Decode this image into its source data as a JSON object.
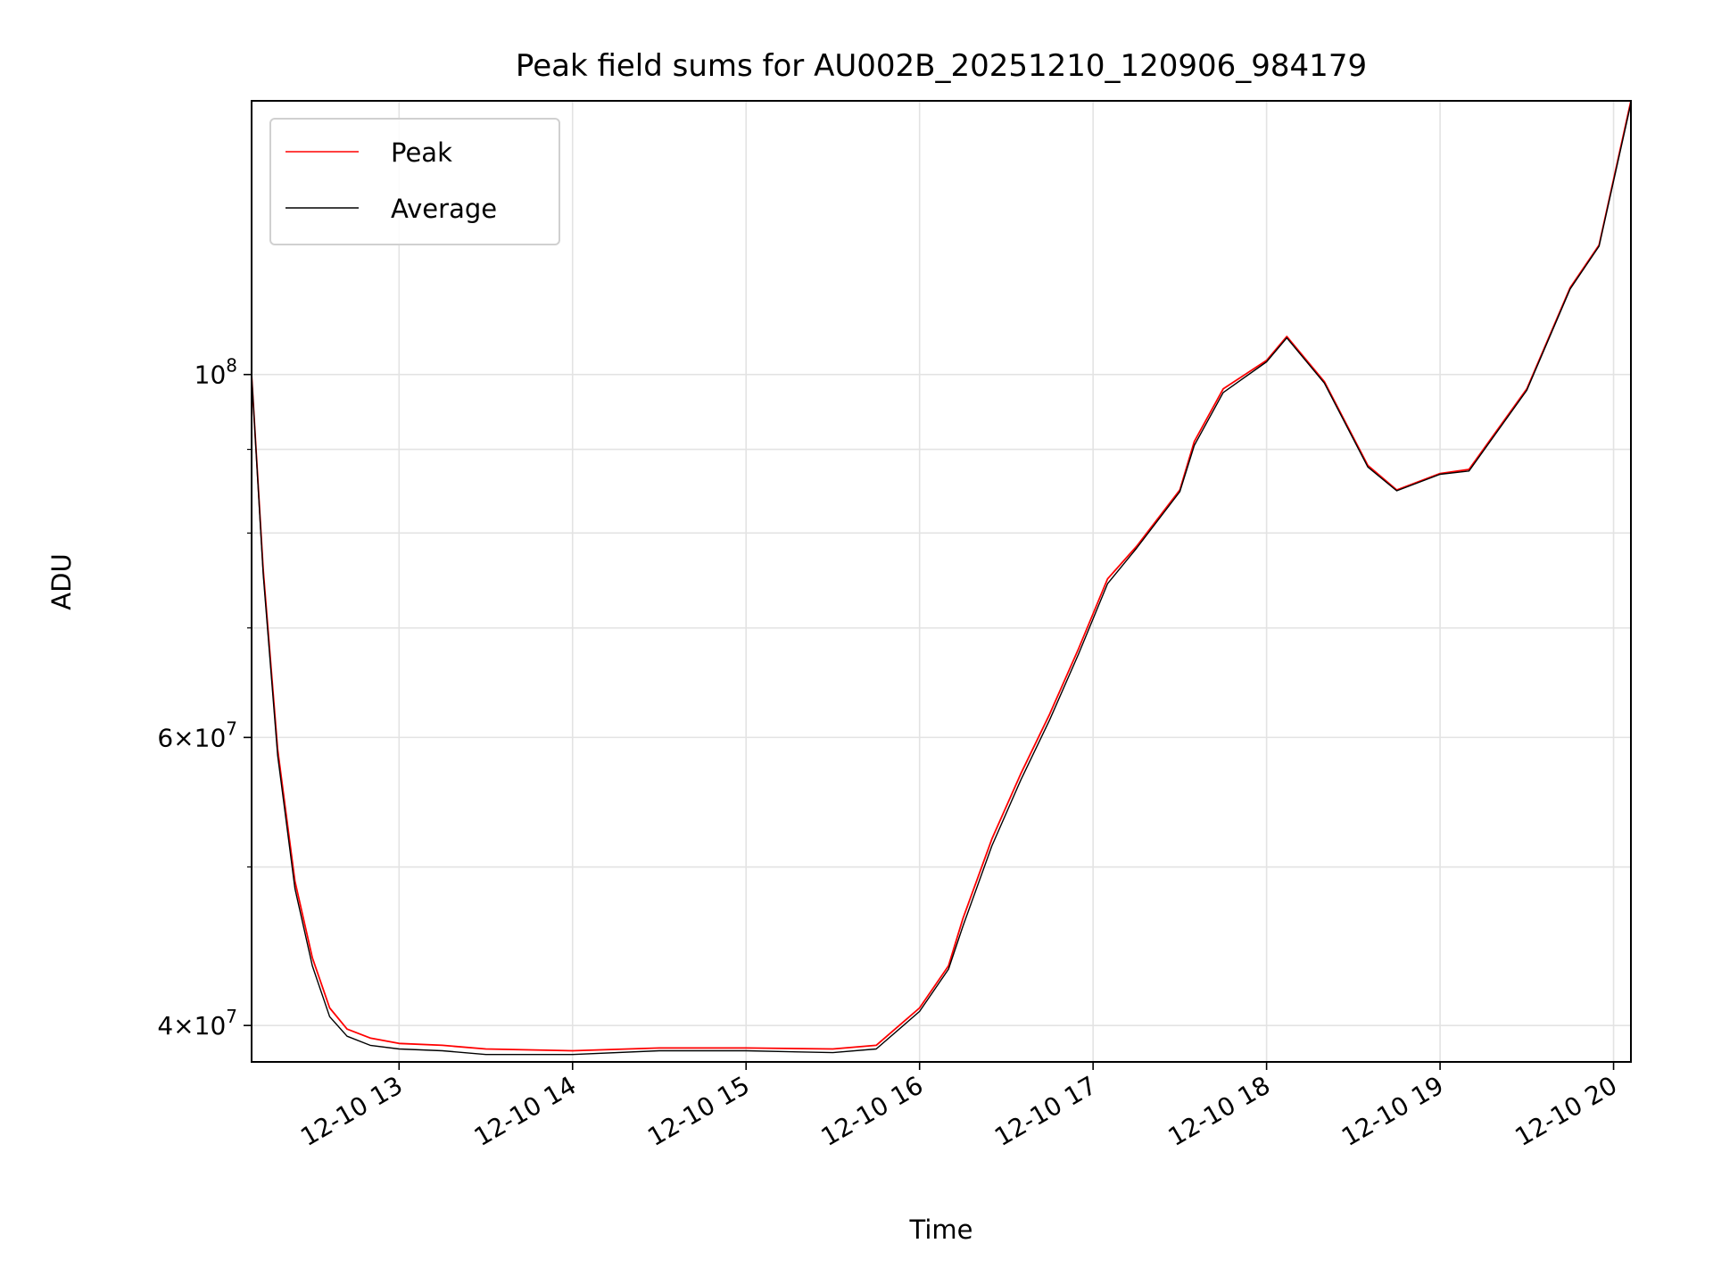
{
  "chart_data": {
    "type": "line",
    "title": "Peak field sums for AU002B_20251210_120906_984179",
    "xlabel": "Time",
    "ylabel": "ADU",
    "yscale": "log",
    "xlim": [
      "2025-12-10 12:09",
      "2025-12-10 20:06"
    ],
    "ylim": [
      38000000,
      147000000
    ],
    "grid": true,
    "legend_position": "upper-left",
    "x_ticks": [
      {
        "value": "2025-12-10 13:00",
        "label": "12-10 13"
      },
      {
        "value": "2025-12-10 14:00",
        "label": "12-10 14"
      },
      {
        "value": "2025-12-10 15:00",
        "label": "12-10 15"
      },
      {
        "value": "2025-12-10 16:00",
        "label": "12-10 16"
      },
      {
        "value": "2025-12-10 17:00",
        "label": "12-10 17"
      },
      {
        "value": "2025-12-10 18:00",
        "label": "12-10 18"
      },
      {
        "value": "2025-12-10 19:00",
        "label": "12-10 19"
      },
      {
        "value": "2025-12-10 20:00",
        "label": "12-10 20"
      }
    ],
    "y_major_ticks": [
      {
        "value": 40000000,
        "mantissa": "4",
        "exponent": "7"
      },
      {
        "value": 60000000,
        "mantissa": "6",
        "exponent": "7"
      },
      {
        "value": 100000000,
        "mantissa": "",
        "exponent": "8"
      }
    ],
    "y_minor_ticks": [
      50000000,
      70000000,
      80000000,
      90000000,
      200000000
    ],
    "series": [
      {
        "name": "Peak",
        "color": "#ff0000",
        "x": [
          "2025-12-10 12:09",
          "2025-12-10 12:13",
          "2025-12-10 12:18",
          "2025-12-10 12:24",
          "2025-12-10 12:30",
          "2025-12-10 12:36",
          "2025-12-10 12:42",
          "2025-12-10 12:50",
          "2025-12-10 13:00",
          "2025-12-10 13:15",
          "2025-12-10 13:30",
          "2025-12-10 14:00",
          "2025-12-10 14:30",
          "2025-12-10 15:00",
          "2025-12-10 15:30",
          "2025-12-10 15:45",
          "2025-12-10 16:00",
          "2025-12-10 16:10",
          "2025-12-10 16:15",
          "2025-12-10 16:25",
          "2025-12-10 16:35",
          "2025-12-10 16:45",
          "2025-12-10 16:55",
          "2025-12-10 17:05",
          "2025-12-10 17:15",
          "2025-12-10 17:30",
          "2025-12-10 17:35",
          "2025-12-10 17:45",
          "2025-12-10 18:00",
          "2025-12-10 18:07",
          "2025-12-10 18:20",
          "2025-12-10 18:35",
          "2025-12-10 18:45",
          "2025-12-10 19:00",
          "2025-12-10 19:10",
          "2025-12-10 19:30",
          "2025-12-10 19:45",
          "2025-12-10 19:55",
          "2025-12-10 20:06"
        ],
        "y": [
          100000000,
          76000000,
          59000000,
          49000000,
          44000000,
          41000000,
          39800000,
          39300000,
          39000000,
          38900000,
          38700000,
          38600000,
          38750000,
          38750000,
          38700000,
          38900000,
          41000000,
          43500000,
          46500000,
          52000000,
          57000000,
          62000000,
          68000000,
          75000000,
          78500000,
          85000000,
          91000000,
          98000000,
          102000000,
          105500000,
          99000000,
          88000000,
          85000000,
          87000000,
          87500000,
          98000000,
          113000000,
          120000000,
          147000000
        ]
      },
      {
        "name": "Average",
        "color": "#000000",
        "x": [
          "2025-12-10 12:09",
          "2025-12-10 12:13",
          "2025-12-10 12:18",
          "2025-12-10 12:24",
          "2025-12-10 12:30",
          "2025-12-10 12:36",
          "2025-12-10 12:42",
          "2025-12-10 12:50",
          "2025-12-10 13:00",
          "2025-12-10 13:15",
          "2025-12-10 13:30",
          "2025-12-10 14:00",
          "2025-12-10 14:30",
          "2025-12-10 15:00",
          "2025-12-10 15:30",
          "2025-12-10 15:45",
          "2025-12-10 16:00",
          "2025-12-10 16:10",
          "2025-12-10 16:15",
          "2025-12-10 16:25",
          "2025-12-10 16:35",
          "2025-12-10 16:45",
          "2025-12-10 16:55",
          "2025-12-10 17:05",
          "2025-12-10 17:15",
          "2025-12-10 17:30",
          "2025-12-10 17:35",
          "2025-12-10 17:45",
          "2025-12-10 18:00",
          "2025-12-10 18:07",
          "2025-12-10 18:20",
          "2025-12-10 18:35",
          "2025-12-10 18:45",
          "2025-12-10 19:00",
          "2025-12-10 19:10",
          "2025-12-10 19:30",
          "2025-12-10 19:45",
          "2025-12-10 19:55",
          "2025-12-10 20:06"
        ],
        "y": [
          100000000,
          75500000,
          58500000,
          48500000,
          43500000,
          40500000,
          39400000,
          38900000,
          38700000,
          38600000,
          38400000,
          38400000,
          38600000,
          38600000,
          38500000,
          38700000,
          40800000,
          43300000,
          46000000,
          51500000,
          56500000,
          61500000,
          67500000,
          74500000,
          78300000,
          84800000,
          90500000,
          97500000,
          101800000,
          105300000,
          98800000,
          87800000,
          84900000,
          86900000,
          87300000,
          97800000,
          112800000,
          119800000,
          146500000
        ]
      }
    ]
  }
}
